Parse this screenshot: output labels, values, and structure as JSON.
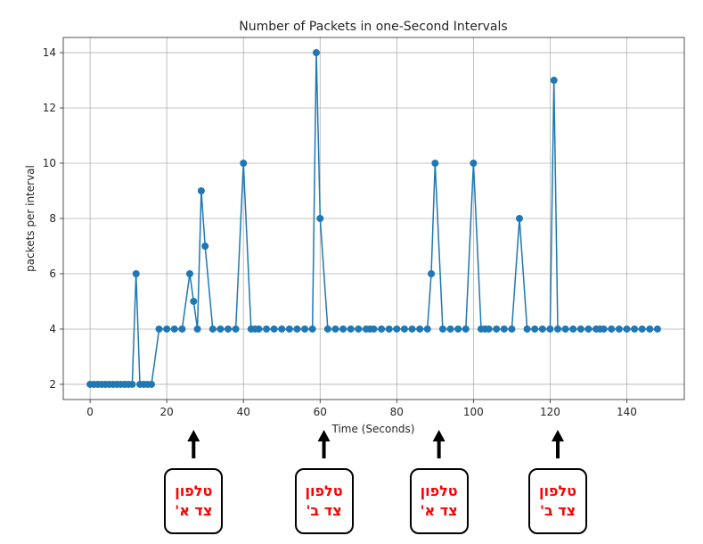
{
  "chart_data": {
    "type": "line",
    "title": "Number of Packets in one-Second Intervals",
    "xlabel": "Time (Seconds)",
    "ylabel": "packets per interval",
    "xlim": [
      -7,
      155
    ],
    "ylim": [
      1.45,
      14.55
    ],
    "xticks": [
      0,
      20,
      40,
      60,
      80,
      100,
      120,
      140
    ],
    "yticks": [
      2,
      4,
      6,
      8,
      10,
      12,
      14
    ],
    "grid": true,
    "color": "#1f77b4",
    "x": [
      0,
      1,
      2,
      3,
      4,
      5,
      6,
      7,
      8,
      9,
      10,
      11,
      12,
      13,
      14,
      15,
      16,
      18,
      20,
      22,
      24,
      26,
      27,
      28,
      29,
      30,
      32,
      34,
      36,
      38,
      40,
      42,
      43,
      44,
      46,
      48,
      50,
      52,
      54,
      56,
      58,
      59,
      60,
      62,
      64,
      66,
      68,
      70,
      72,
      73,
      74,
      76,
      78,
      80,
      82,
      84,
      86,
      88,
      89,
      90,
      92,
      94,
      96,
      98,
      100,
      102,
      103,
      104,
      106,
      108,
      110,
      112,
      114,
      116,
      118,
      120,
      121,
      122,
      124,
      126,
      128,
      130,
      132,
      133,
      134,
      136,
      138,
      140,
      142,
      144,
      146,
      148
    ],
    "y": [
      2,
      2,
      2,
      2,
      2,
      2,
      2,
      2,
      2,
      2,
      2,
      2,
      6,
      2,
      2,
      2,
      2,
      4,
      4,
      4,
      4,
      6,
      5,
      4,
      9,
      7,
      4,
      4,
      4,
      4,
      10,
      4,
      4,
      4,
      4,
      4,
      4,
      4,
      4,
      4,
      4,
      14,
      8,
      4,
      4,
      4,
      4,
      4,
      4,
      4,
      4,
      4,
      4,
      4,
      4,
      4,
      4,
      4,
      6,
      10,
      4,
      4,
      4,
      4,
      10,
      4,
      4,
      4,
      4,
      4,
      4,
      8,
      4,
      4,
      4,
      4,
      13,
      4,
      4,
      4,
      4,
      4,
      4,
      4,
      4,
      4,
      4,
      4,
      4,
      4,
      4,
      4
    ]
  },
  "annotations": [
    {
      "x": 27,
      "line1": "טלפון",
      "line2": "צד א'"
    },
    {
      "x": 61,
      "line1": "טלפון",
      "line2": "צד ב'"
    },
    {
      "x": 91,
      "line1": "טלפון",
      "line2": "צד א'"
    },
    {
      "x": 122,
      "line1": "טלפון",
      "line2": "צד ב'"
    }
  ]
}
